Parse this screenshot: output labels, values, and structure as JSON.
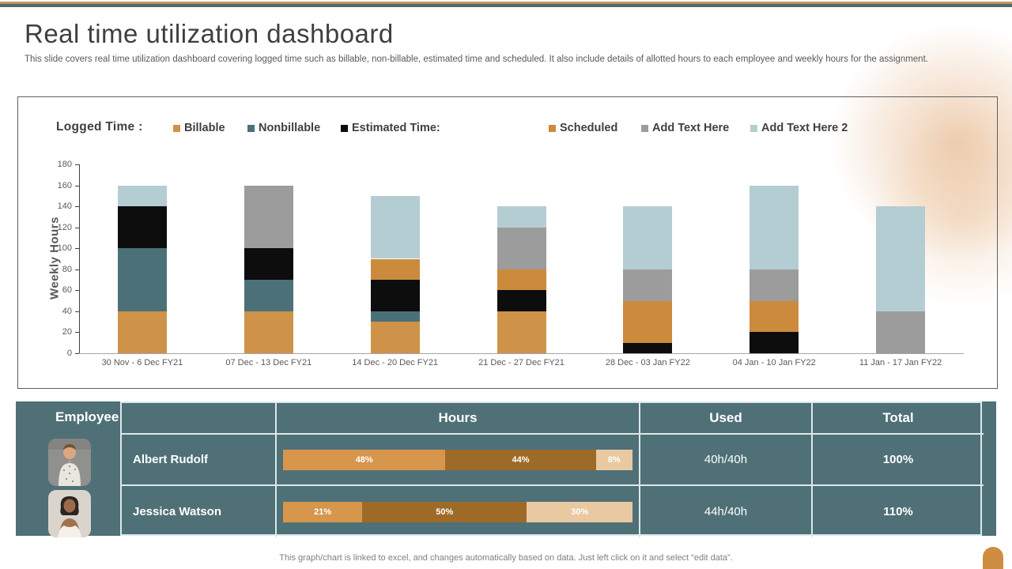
{
  "slide": {
    "title": "Real time utilization dashboard",
    "subtitle": "This slide covers real time utilization dashboard covering logged time such as billable, non-billable, estimated time and scheduled. It also include details of allotted hours to each employee and weekly hours for the assignment.",
    "footer": "This graph/chart is linked to excel,  and changes automatically based on data. Just left click on it and select “edit data”."
  },
  "chart_data": {
    "type": "bar",
    "stacked": true,
    "title": "Logged Time :",
    "ylabel": "Weekly Hours",
    "ylim": [
      0,
      180
    ],
    "ytick_step": 20,
    "grid": false,
    "legend_position": "top",
    "categories": [
      "30 Nov - 6 Dec FY21",
      "07 Dec - 13 Dec FY21",
      "14 Dec - 20 Dec FY21",
      "21 Dec - 27 Dec FY21",
      "28 Dec - 03 Jan FY22",
      "04 Jan - 10 Jan FY22",
      "11 Jan - 17 Jan FY22"
    ],
    "series": [
      {
        "name": "Billable",
        "color": "#ce9348",
        "values": [
          40,
          40,
          30,
          40,
          0,
          0,
          0
        ]
      },
      {
        "name": "Nonbillable",
        "color": "#4c7078",
        "values": [
          60,
          30,
          10,
          0,
          0,
          0,
          0
        ]
      },
      {
        "name": "Estimated Time:",
        "color": "#0d0d0d",
        "values": [
          40,
          30,
          30,
          20,
          10,
          20,
          0
        ]
      },
      {
        "name": "Scheduled",
        "color": "#cc8b3c",
        "values": [
          0,
          0,
          20,
          20,
          40,
          30,
          0
        ]
      },
      {
        "name": "Add Text Here",
        "color": "#9c9c9c",
        "values": [
          0,
          60,
          0,
          40,
          30,
          30,
          40
        ]
      },
      {
        "name": "Add Text Here 2",
        "color": "#b4cdd2",
        "values": [
          20,
          0,
          60,
          20,
          60,
          80,
          100
        ]
      }
    ]
  },
  "table": {
    "headers": {
      "employee": "Employee",
      "hours": "Hours",
      "used": "Used",
      "total": "Total"
    },
    "rows": [
      {
        "name": "Albert Rudolf",
        "avatar": "albert-photo",
        "segments": [
          {
            "label": "48%",
            "value": 48,
            "color": "#d6964b"
          },
          {
            "label": "44%",
            "value": 44,
            "color": "#9e6a28"
          },
          {
            "label": "8%",
            "value": 8,
            "color": "#e9c9a2"
          }
        ],
        "used": "40h/40h",
        "total": "100%"
      },
      {
        "name": "Jessica Watson",
        "avatar": "jessica-photo",
        "segments": [
          {
            "label": "21%",
            "value": 21,
            "color": "#d6964b"
          },
          {
            "label": "50%",
            "value": 50,
            "color": "#9e6a28"
          },
          {
            "label": "30%",
            "value": 30,
            "color": "#e9c9a2"
          }
        ],
        "used": "44h/40h",
        "total": "110%"
      }
    ]
  }
}
